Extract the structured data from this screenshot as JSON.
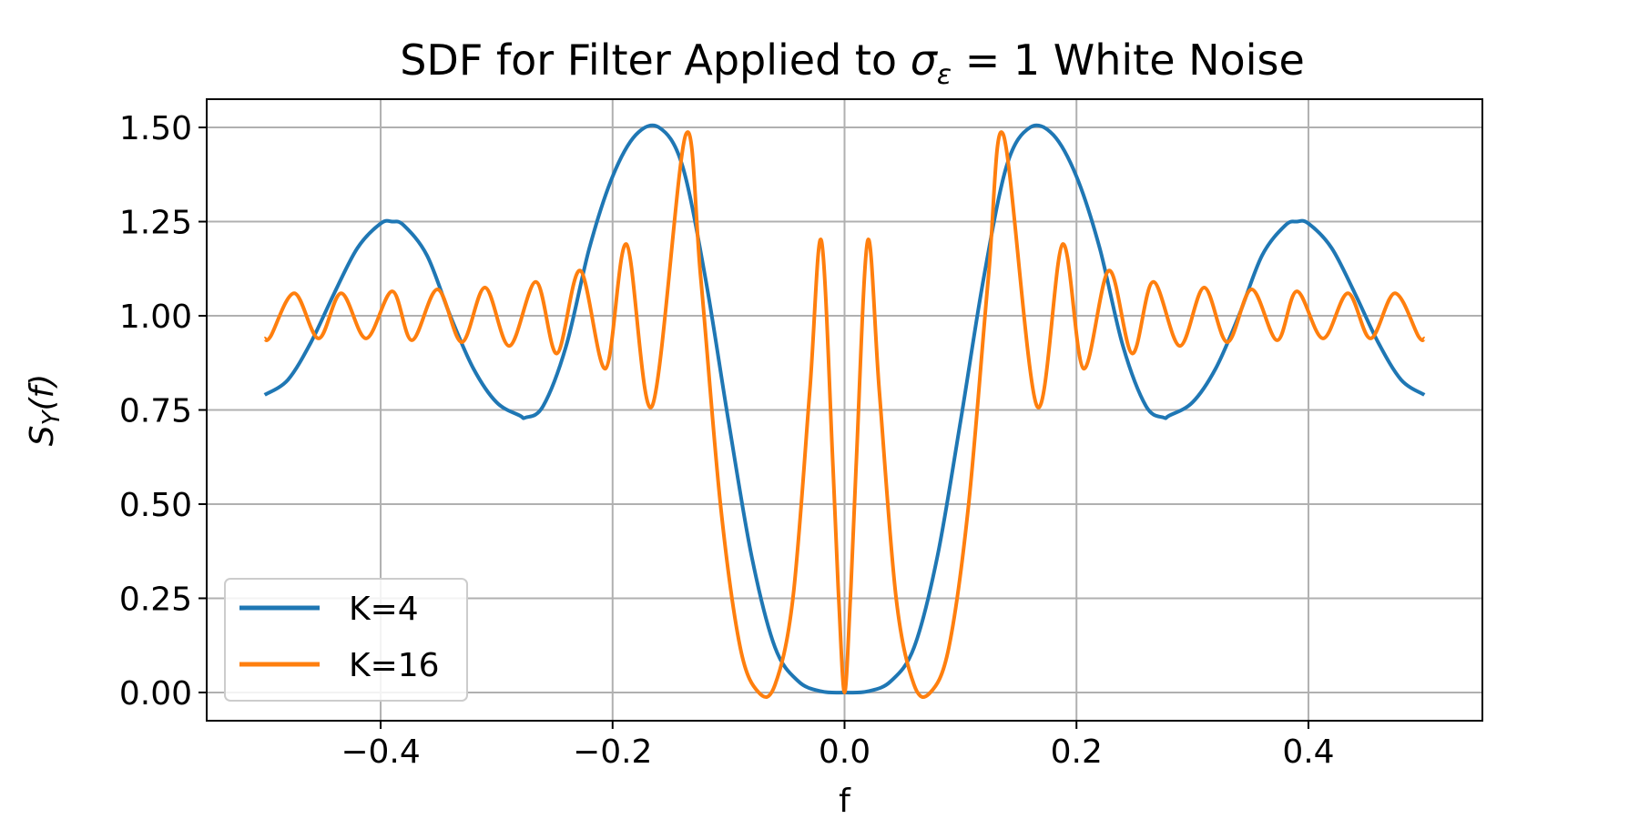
{
  "chart_data": {
    "type": "line",
    "title_prefix": "SDF for Filter Applied to ",
    "title_sigma": "σ",
    "title_sub": "ε",
    "title_eq": " = 1",
    "title_suffix": " White Noise",
    "xlabel": "f",
    "ylabel_main": "S",
    "ylabel_sub": "Y",
    "ylabel_arg": "(f)",
    "xlim": [
      -0.55,
      0.55
    ],
    "ylim": [
      -0.075,
      1.575
    ],
    "xticks": [
      -0.4,
      -0.2,
      0.0,
      0.2,
      0.4
    ],
    "xtick_labels": [
      "−0.4",
      "−0.2",
      "0.0",
      "0.2",
      "0.4"
    ],
    "yticks": [
      0.0,
      0.25,
      0.5,
      0.75,
      1.0,
      1.25,
      1.5
    ],
    "ytick_labels": [
      "0.00",
      "0.25",
      "0.50",
      "0.75",
      "1.00",
      "1.25",
      "1.50"
    ],
    "grid": true,
    "legend_position": "lower-left",
    "series": [
      {
        "name": "K=4",
        "color": "#1f77b4",
        "x": [
          -0.5,
          -0.48,
          -0.46,
          -0.44,
          -0.42,
          -0.4,
          -0.39,
          -0.38,
          -0.36,
          -0.34,
          -0.32,
          -0.3,
          -0.28,
          -0.275,
          -0.26,
          -0.24,
          -0.22,
          -0.2,
          -0.18,
          -0.16,
          -0.14,
          -0.12,
          -0.1,
          -0.08,
          -0.06,
          -0.04,
          -0.02,
          0.0,
          0.02,
          0.04,
          0.06,
          0.08,
          0.1,
          0.12,
          0.14,
          0.16,
          0.18,
          0.2,
          0.22,
          0.24,
          0.26,
          0.275,
          0.28,
          0.3,
          0.32,
          0.34,
          0.36,
          0.38,
          0.39,
          0.4,
          0.42,
          0.44,
          0.46,
          0.48,
          0.5
        ],
        "y": [
          0.79,
          0.83,
          0.93,
          1.06,
          1.18,
          1.245,
          1.25,
          1.24,
          1.16,
          1.0,
          0.86,
          0.77,
          0.735,
          0.73,
          0.76,
          0.92,
          1.18,
          1.37,
          1.48,
          1.5,
          1.4,
          1.1,
          0.72,
          0.36,
          0.12,
          0.03,
          0.003,
          0.0,
          0.003,
          0.03,
          0.12,
          0.36,
          0.72,
          1.1,
          1.4,
          1.5,
          1.48,
          1.37,
          1.18,
          0.92,
          0.76,
          0.73,
          0.735,
          0.77,
          0.86,
          1.0,
          1.16,
          1.24,
          1.25,
          1.245,
          1.18,
          1.06,
          0.93,
          0.83,
          0.79
        ]
      },
      {
        "name": "K=16",
        "color": "#ff7f0e",
        "x": [
          -0.5,
          -0.495,
          -0.4745,
          -0.4535,
          -0.434,
          -0.4125,
          -0.39,
          -0.373,
          -0.351,
          -0.33,
          -0.31,
          -0.289,
          -0.266,
          -0.248,
          -0.228,
          -0.206,
          -0.188,
          -0.166,
          -0.137,
          -0.124,
          -0.107,
          -0.09,
          -0.074,
          -0.06,
          -0.0445,
          -0.03,
          -0.02,
          -0.01,
          -0.005,
          0.0,
          0.005,
          0.01,
          0.02,
          0.03,
          0.0445,
          0.06,
          0.074,
          0.09,
          0.107,
          0.124,
          0.137,
          0.166,
          0.188,
          0.206,
          0.228,
          0.248,
          0.266,
          0.289,
          0.31,
          0.33,
          0.351,
          0.373,
          0.39,
          0.4125,
          0.434,
          0.4535,
          0.4745,
          0.495,
          0.5
        ],
        "y": [
          0.94,
          0.945,
          1.06,
          0.94,
          1.06,
          0.94,
          1.065,
          0.935,
          1.07,
          0.93,
          1.075,
          0.92,
          1.09,
          0.9,
          1.12,
          0.86,
          1.19,
          0.76,
          1.48,
          1.1,
          0.5,
          0.12,
          0.0,
          0.02,
          0.25,
          0.8,
          1.2,
          0.6,
          0.25,
          0.0,
          0.25,
          0.6,
          1.2,
          0.8,
          0.25,
          0.02,
          0.0,
          0.12,
          0.5,
          1.1,
          1.48,
          0.76,
          1.19,
          0.86,
          1.12,
          0.9,
          1.09,
          0.92,
          1.075,
          0.93,
          1.07,
          0.935,
          1.065,
          0.94,
          1.06,
          0.94,
          1.06,
          0.945,
          0.94
        ]
      }
    ]
  }
}
